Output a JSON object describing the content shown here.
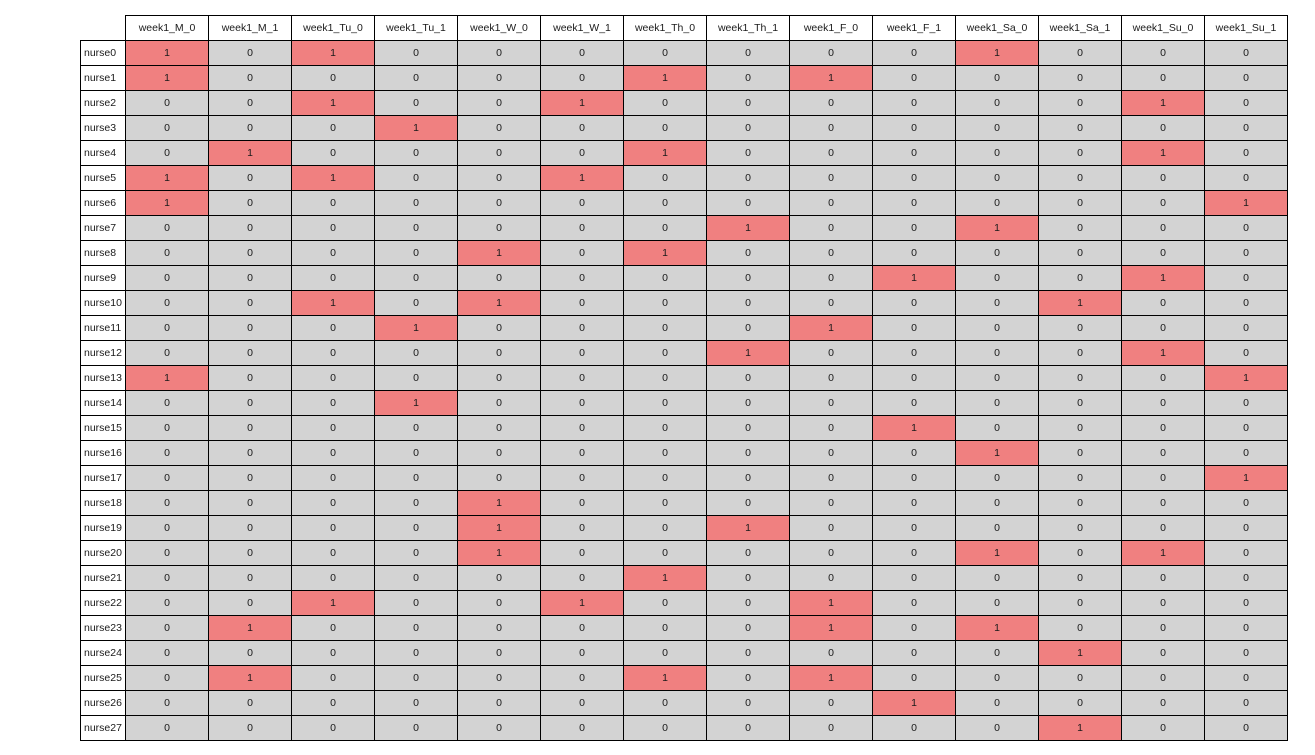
{
  "chart_data": {
    "type": "table",
    "columns": [
      "week1_M_0",
      "week1_M_1",
      "week1_Tu_0",
      "week1_Tu_1",
      "week1_W_0",
      "week1_W_1",
      "week1_Th_0",
      "week1_Th_1",
      "week1_F_0",
      "week1_F_1",
      "week1_Sa_0",
      "week1_Sa_1",
      "week1_Su_0",
      "week1_Su_1"
    ],
    "rows": [
      {
        "label": "nurse0",
        "values": [
          "1",
          "0",
          "1",
          "0",
          "0",
          "0",
          "0",
          "0",
          "0",
          "0",
          "1",
          "0",
          "0",
          "0"
        ]
      },
      {
        "label": "nurse1",
        "values": [
          "1",
          "0",
          "0",
          "0",
          "0",
          "0",
          "1",
          "0",
          "1",
          "0",
          "0",
          "0",
          "0",
          "0"
        ]
      },
      {
        "label": "nurse2",
        "values": [
          "0",
          "0",
          "1",
          "0",
          "0",
          "1",
          "0",
          "0",
          "0",
          "0",
          "0",
          "0",
          "1",
          "0"
        ]
      },
      {
        "label": "nurse3",
        "values": [
          "0",
          "0",
          "0",
          "1",
          "0",
          "0",
          "0",
          "0",
          "0",
          "0",
          "0",
          "0",
          "0",
          "0"
        ]
      },
      {
        "label": "nurse4",
        "values": [
          "0",
          "1",
          "0",
          "0",
          "0",
          "0",
          "1",
          "0",
          "0",
          "0",
          "0",
          "0",
          "1",
          "0"
        ]
      },
      {
        "label": "nurse5",
        "values": [
          "1",
          "0",
          "1",
          "0",
          "0",
          "1",
          "0",
          "0",
          "0",
          "0",
          "0",
          "0",
          "0",
          "0"
        ]
      },
      {
        "label": "nurse6",
        "values": [
          "1",
          "0",
          "0",
          "0",
          "0",
          "0",
          "0",
          "0",
          "0",
          "0",
          "0",
          "0",
          "0",
          "1"
        ]
      },
      {
        "label": "nurse7",
        "values": [
          "0",
          "0",
          "0",
          "0",
          "0",
          "0",
          "0",
          "1",
          "0",
          "0",
          "1",
          "0",
          "0",
          "0"
        ]
      },
      {
        "label": "nurse8",
        "values": [
          "0",
          "0",
          "0",
          "0",
          "1",
          "0",
          "1",
          "0",
          "0",
          "0",
          "0",
          "0",
          "0",
          "0"
        ]
      },
      {
        "label": "nurse9",
        "values": [
          "0",
          "0",
          "0",
          "0",
          "0",
          "0",
          "0",
          "0",
          "0",
          "1",
          "0",
          "0",
          "1",
          "0"
        ]
      },
      {
        "label": "nurse10",
        "values": [
          "0",
          "0",
          "1",
          "0",
          "1",
          "0",
          "0",
          "0",
          "0",
          "0",
          "0",
          "1",
          "0",
          "0"
        ]
      },
      {
        "label": "nurse11",
        "values": [
          "0",
          "0",
          "0",
          "1",
          "0",
          "0",
          "0",
          "0",
          "1",
          "0",
          "0",
          "0",
          "0",
          "0"
        ]
      },
      {
        "label": "nurse12",
        "values": [
          "0",
          "0",
          "0",
          "0",
          "0",
          "0",
          "0",
          "1",
          "0",
          "0",
          "0",
          "0",
          "1",
          "0"
        ]
      },
      {
        "label": "nurse13",
        "values": [
          "1",
          "0",
          "0",
          "0",
          "0",
          "0",
          "0",
          "0",
          "0",
          "0",
          "0",
          "0",
          "0",
          "1"
        ]
      },
      {
        "label": "nurse14",
        "values": [
          "0",
          "0",
          "0",
          "1",
          "0",
          "0",
          "0",
          "0",
          "0",
          "0",
          "0",
          "0",
          "0",
          "0"
        ]
      },
      {
        "label": "nurse15",
        "values": [
          "0",
          "0",
          "0",
          "0",
          "0",
          "0",
          "0",
          "0",
          "0",
          "1",
          "0",
          "0",
          "0",
          "0"
        ]
      },
      {
        "label": "nurse16",
        "values": [
          "0",
          "0",
          "0",
          "0",
          "0",
          "0",
          "0",
          "0",
          "0",
          "0",
          "1",
          "0",
          "0",
          "0"
        ]
      },
      {
        "label": "nurse17",
        "values": [
          "0",
          "0",
          "0",
          "0",
          "0",
          "0",
          "0",
          "0",
          "0",
          "0",
          "0",
          "0",
          "0",
          "1"
        ]
      },
      {
        "label": "nurse18",
        "values": [
          "0",
          "0",
          "0",
          "0",
          "1",
          "0",
          "0",
          "0",
          "0",
          "0",
          "0",
          "0",
          "0",
          "0"
        ]
      },
      {
        "label": "nurse19",
        "values": [
          "0",
          "0",
          "0",
          "0",
          "1",
          "0",
          "0",
          "1",
          "0",
          "0",
          "0",
          "0",
          "0",
          "0"
        ]
      },
      {
        "label": "nurse20",
        "values": [
          "0",
          "0",
          "0",
          "0",
          "1",
          "0",
          "0",
          "0",
          "0",
          "0",
          "1",
          "0",
          "1",
          "0"
        ]
      },
      {
        "label": "nurse21",
        "values": [
          "0",
          "0",
          "0",
          "0",
          "0",
          "0",
          "1",
          "0",
          "0",
          "0",
          "0",
          "0",
          "0",
          "0"
        ]
      },
      {
        "label": "nurse22",
        "values": [
          "0",
          "0",
          "1",
          "0",
          "0",
          "1",
          "0",
          "0",
          "1",
          "0",
          "0",
          "0",
          "0",
          "0"
        ]
      },
      {
        "label": "nurse23",
        "values": [
          "0",
          "1",
          "0",
          "0",
          "0",
          "0",
          "0",
          "0",
          "1",
          "0",
          "1",
          "0",
          "0",
          "0"
        ]
      },
      {
        "label": "nurse24",
        "values": [
          "0",
          "0",
          "0",
          "0",
          "0",
          "0",
          "0",
          "0",
          "0",
          "0",
          "0",
          "1",
          "0",
          "0"
        ]
      },
      {
        "label": "nurse25",
        "values": [
          "0",
          "1",
          "0",
          "0",
          "0",
          "0",
          "1",
          "0",
          "1",
          "0",
          "0",
          "0",
          "0",
          "0"
        ]
      },
      {
        "label": "nurse26",
        "values": [
          "0",
          "0",
          "0",
          "0",
          "0",
          "0",
          "0",
          "0",
          "0",
          "1",
          "0",
          "0",
          "0",
          "0"
        ]
      },
      {
        "label": "nurse27",
        "values": [
          "0",
          "0",
          "0",
          "0",
          "0",
          "0",
          "0",
          "0",
          "0",
          "0",
          "0",
          "1",
          "0",
          "0"
        ]
      }
    ],
    "colors": {
      "assigned": "#f08080",
      "unassigned": "#d3d3d3"
    }
  }
}
